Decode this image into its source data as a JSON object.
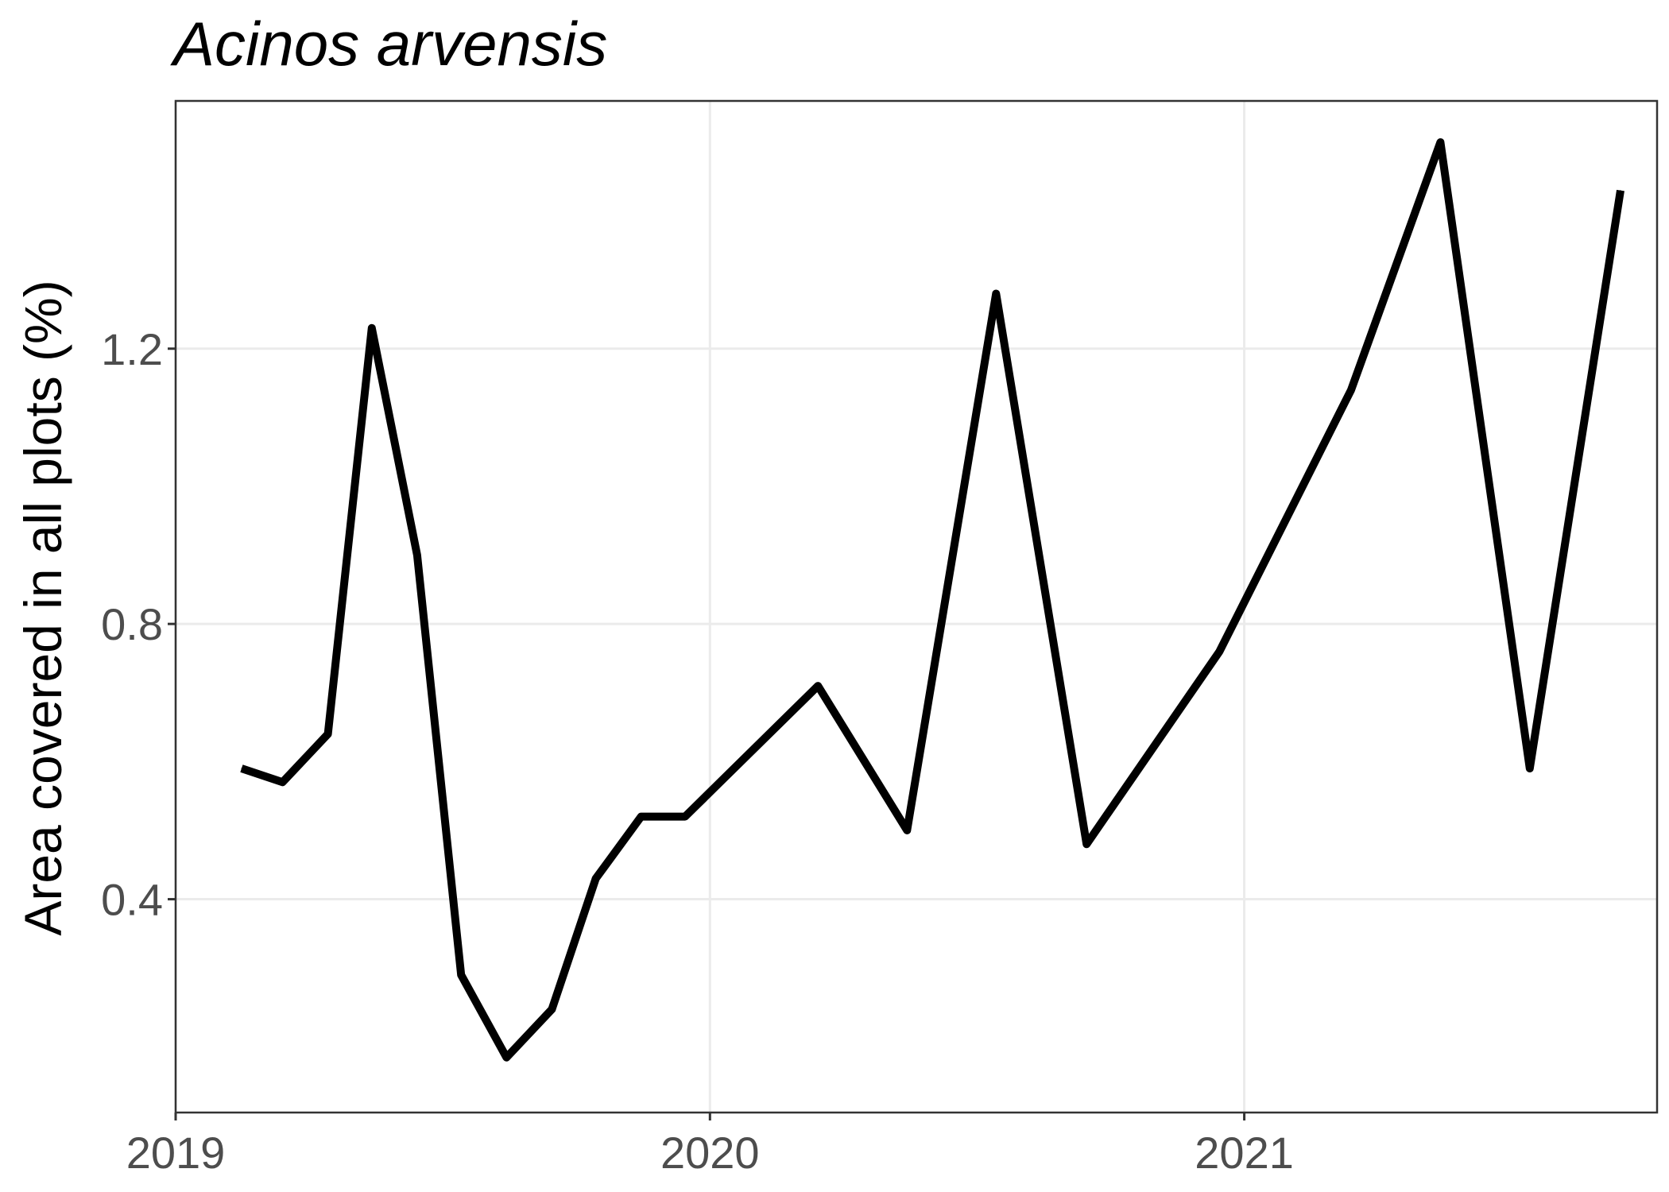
{
  "chart_data": {
    "type": "line",
    "title": "Acinos arvensis",
    "xlabel": "",
    "ylabel": "Area covered in all plots (%)",
    "xlim": [
      "2019-01-01",
      "2021-10-10"
    ],
    "ylim": [
      0.09,
      1.56
    ],
    "x_ticks": [
      "2019",
      "2020",
      "2021"
    ],
    "y_ticks": [
      "0.4",
      "0.8",
      "1.2"
    ],
    "grid": true,
    "series": [
      {
        "color": "#000000",
        "points": [
          {
            "x": "2019-02-15",
            "y": 0.59
          },
          {
            "x": "2019-03-15",
            "y": 0.57
          },
          {
            "x": "2019-04-15",
            "y": 0.64
          },
          {
            "x": "2019-05-15",
            "y": 1.23
          },
          {
            "x": "2019-06-15",
            "y": 0.9
          },
          {
            "x": "2019-07-15",
            "y": 0.29
          },
          {
            "x": "2019-08-15",
            "y": 0.17
          },
          {
            "x": "2019-09-15",
            "y": 0.24
          },
          {
            "x": "2019-10-15",
            "y": 0.43
          },
          {
            "x": "2019-11-15",
            "y": 0.52
          },
          {
            "x": "2019-12-15",
            "y": 0.52
          },
          {
            "x": "2020-03-15",
            "y": 0.71
          },
          {
            "x": "2020-05-15",
            "y": 0.5
          },
          {
            "x": "2020-07-15",
            "y": 1.28
          },
          {
            "x": "2020-09-15",
            "y": 0.48
          },
          {
            "x": "2020-12-15",
            "y": 0.76
          },
          {
            "x": "2021-03-15",
            "y": 1.14
          },
          {
            "x": "2021-05-15",
            "y": 1.5
          },
          {
            "x": "2021-07-15",
            "y": 0.59
          },
          {
            "x": "2021-09-15",
            "y": 1.43
          }
        ]
      }
    ]
  }
}
